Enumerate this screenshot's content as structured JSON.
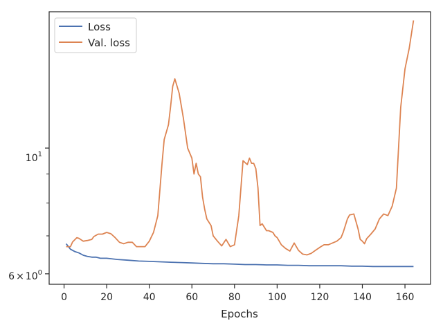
{
  "chart_data": {
    "type": "line",
    "title": "",
    "xlabel": "Epochs",
    "ylabel": "",
    "yscale": "log",
    "xlim": [
      -7,
      172
    ],
    "ylim": [
      5.75,
      17.4
    ],
    "x_ticks": [
      0,
      20,
      40,
      60,
      80,
      100,
      120,
      140,
      160
    ],
    "x_tick_labels": [
      "0",
      "20",
      "40",
      "60",
      "80",
      "100",
      "120",
      "140",
      "160"
    ],
    "y_major_ticks": [
      6,
      10
    ],
    "y_major_labels": {
      "base": "6",
      "times": "×",
      "power_base": "10",
      "power_exp": "0",
      "ten_base": "10",
      "ten_exp": "1"
    },
    "y_minor_ticks": [
      7,
      8,
      9
    ],
    "grid": false,
    "legend_placement": "upper-left",
    "series": [
      {
        "name": "Loss",
        "color": "#4c72b0",
        "x": [
          1,
          3,
          5,
          7,
          9,
          11,
          13,
          15,
          17,
          20,
          25,
          30,
          35,
          40,
          45,
          50,
          55,
          60,
          65,
          70,
          75,
          80,
          85,
          90,
          95,
          100,
          105,
          110,
          115,
          120,
          125,
          130,
          135,
          140,
          145,
          150,
          155,
          160,
          164
        ],
        "y": [
          6.78,
          6.63,
          6.57,
          6.53,
          6.47,
          6.44,
          6.42,
          6.42,
          6.39,
          6.39,
          6.36,
          6.34,
          6.32,
          6.31,
          6.3,
          6.29,
          6.28,
          6.27,
          6.26,
          6.25,
          6.25,
          6.24,
          6.23,
          6.23,
          6.22,
          6.22,
          6.21,
          6.21,
          6.2,
          6.2,
          6.2,
          6.2,
          6.19,
          6.19,
          6.18,
          6.18,
          6.18,
          6.18,
          6.18
        ]
      },
      {
        "name": "Val. loss",
        "color": "#dd8452",
        "x": [
          1,
          3,
          4,
          6,
          7,
          9,
          11,
          13,
          14,
          16,
          18,
          20,
          22,
          24,
          26,
          28,
          30,
          32,
          34,
          36,
          38,
          40,
          42,
          44,
          46,
          47,
          49,
          50,
          51,
          52,
          54,
          56,
          58,
          60,
          61,
          62,
          63,
          64,
          65,
          66,
          67,
          69,
          70,
          72,
          74,
          76,
          78,
          80,
          82,
          84,
          86,
          87,
          88,
          89,
          90,
          91,
          92,
          93,
          94,
          95,
          96,
          98,
          99,
          100,
          101,
          102,
          104,
          106,
          108,
          110,
          112,
          114,
          116,
          118,
          120,
          122,
          124,
          126,
          128,
          130,
          131,
          132,
          133,
          134,
          136,
          138,
          139,
          140,
          141,
          142,
          144,
          146,
          148,
          150,
          152,
          154,
          156,
          158,
          160,
          162,
          164
        ],
        "y": [
          6.7,
          6.7,
          6.83,
          6.95,
          6.93,
          6.85,
          6.87,
          6.9,
          6.98,
          7.05,
          7.05,
          7.1,
          7.06,
          6.95,
          6.82,
          6.78,
          6.82,
          6.82,
          6.7,
          6.7,
          6.7,
          6.85,
          7.1,
          7.6,
          9.4,
          10.35,
          11.0,
          11.85,
          12.85,
          13.25,
          12.5,
          11.3,
          10.0,
          9.6,
          9.0,
          9.4,
          9.0,
          8.9,
          8.2,
          7.8,
          7.5,
          7.3,
          7.0,
          6.85,
          6.72,
          6.9,
          6.7,
          6.75,
          7.6,
          9.5,
          9.35,
          9.6,
          9.4,
          9.4,
          9.2,
          8.5,
          7.3,
          7.35,
          7.25,
          7.15,
          7.15,
          7.1,
          7.0,
          6.95,
          6.85,
          6.75,
          6.65,
          6.58,
          6.8,
          6.6,
          6.5,
          6.48,
          6.52,
          6.6,
          6.68,
          6.75,
          6.75,
          6.8,
          6.85,
          6.95,
          7.1,
          7.3,
          7.5,
          7.62,
          7.65,
          7.2,
          6.9,
          6.85,
          6.78,
          6.92,
          7.05,
          7.2,
          7.5,
          7.65,
          7.6,
          7.9,
          8.5,
          11.8,
          13.8,
          15.0,
          16.8
        ]
      }
    ]
  }
}
